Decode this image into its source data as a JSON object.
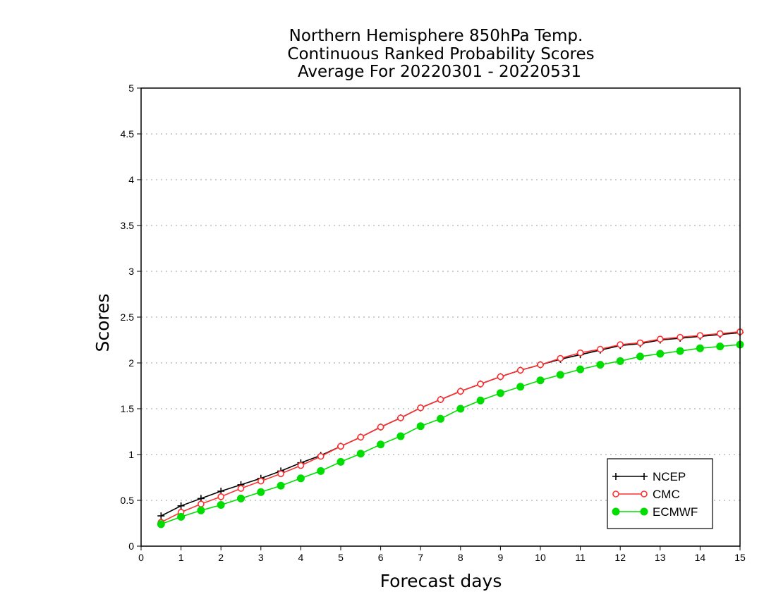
{
  "chart_data": {
    "type": "line",
    "title": [
      "Northern Hemisphere 850hPa Temp.",
      "Continuous Ranked Probability Scores",
      "Average For 20220301 - 20220531"
    ],
    "xlabel": "Forecast days",
    "ylabel": "Scores",
    "xlim": [
      0,
      15
    ],
    "ylim": [
      0,
      5
    ],
    "x_ticks": [
      "0",
      "1",
      "2",
      "3",
      "4",
      "5",
      "6",
      "7",
      "8",
      "9",
      "10",
      "11",
      "12",
      "13",
      "14",
      "15"
    ],
    "y_ticks": [
      "0",
      "0.5",
      "1",
      "1.5",
      "2",
      "2.5",
      "3",
      "3.5",
      "4",
      "4.5",
      "5"
    ],
    "grid": "horizontal dotted",
    "legend_position": "bottom-right",
    "x": [
      0.5,
      1,
      1.5,
      2,
      2.5,
      3,
      3.5,
      4,
      4.5,
      5,
      5.5,
      6,
      6.5,
      7,
      7.5,
      8,
      8.5,
      9,
      9.5,
      10,
      10.5,
      11,
      11.5,
      12,
      12.5,
      13,
      13.5,
      14,
      14.5,
      15
    ],
    "series": [
      {
        "name": "NCEP",
        "color": "#000000",
        "marker": "plus",
        "values": [
          0.33,
          0.44,
          0.52,
          0.6,
          0.67,
          0.74,
          0.82,
          0.91,
          0.99,
          1.09,
          1.19,
          1.3,
          1.4,
          1.51,
          1.6,
          1.69,
          1.77,
          1.85,
          1.92,
          1.98,
          2.04,
          2.09,
          2.14,
          2.19,
          2.21,
          2.25,
          2.27,
          2.29,
          2.31,
          2.33
        ]
      },
      {
        "name": "CMC",
        "color": "#ff3030",
        "marker": "open-circle",
        "values": [
          0.26,
          0.37,
          0.46,
          0.54,
          0.63,
          0.71,
          0.79,
          0.88,
          0.98,
          1.09,
          1.19,
          1.3,
          1.4,
          1.51,
          1.6,
          1.69,
          1.77,
          1.85,
          1.92,
          1.98,
          2.05,
          2.11,
          2.15,
          2.2,
          2.22,
          2.26,
          2.28,
          2.3,
          2.32,
          2.34
        ]
      },
      {
        "name": "ECMWF",
        "color": "#00dd00",
        "marker": "filled-circle",
        "values": [
          0.24,
          0.32,
          0.39,
          0.45,
          0.52,
          0.59,
          0.66,
          0.74,
          0.82,
          0.92,
          1.01,
          1.11,
          1.2,
          1.31,
          1.39,
          1.5,
          1.59,
          1.67,
          1.74,
          1.81,
          1.87,
          1.93,
          1.98,
          2.02,
          2.07,
          2.1,
          2.13,
          2.16,
          2.18,
          2.2
        ]
      }
    ]
  }
}
